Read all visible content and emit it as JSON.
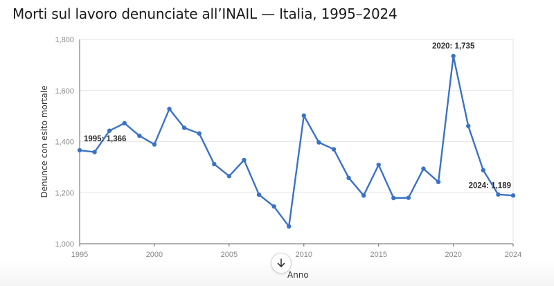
{
  "chart_data": {
    "type": "line",
    "title": "Morti sul lavoro denunciate all’INAIL — Italia, 1995–2024",
    "xlabel": "Anno",
    "ylabel": "Denunce con esito mortale",
    "xlim": [
      1995,
      2024
    ],
    "ylim": [
      1000,
      1800
    ],
    "x_ticks": [
      "1995",
      "2000",
      "2005",
      "2010",
      "2015",
      "2020",
      "2024"
    ],
    "y_ticks": [
      "1,000",
      "1,200",
      "1,400",
      "1,600",
      "1,800"
    ],
    "grid": true,
    "series": [
      {
        "color": "#3a72c7",
        "x": [
          1995,
          1996,
          1997,
          1998,
          1999,
          2000,
          2001,
          2002,
          2003,
          2004,
          2005,
          2006,
          2007,
          2008,
          2009,
          2010,
          2011,
          2012,
          2013,
          2014,
          2015,
          2016,
          2017,
          2018,
          2019,
          2020,
          2021,
          2022,
          2023,
          2024
        ],
        "values": [
          1366,
          1359,
          1443,
          1472,
          1423,
          1389,
          1528,
          1454,
          1432,
          1312,
          1265,
          1328,
          1192,
          1146,
          1068,
          1502,
          1397,
          1370,
          1258,
          1189,
          1309,
          1179,
          1180,
          1294,
          1242,
          1735,
          1461,
          1288,
          1193,
          1189
        ]
      }
    ],
    "annotations": [
      {
        "x": 1995,
        "y": 1366,
        "text": "1995: 1,366"
      },
      {
        "x": 2020,
        "y": 1735,
        "text": "2020: 1,735"
      },
      {
        "x": 2024,
        "y": 1189,
        "text": "2024: 1,189"
      }
    ]
  },
  "scroll_button": {
    "icon": "arrow-down-icon"
  }
}
